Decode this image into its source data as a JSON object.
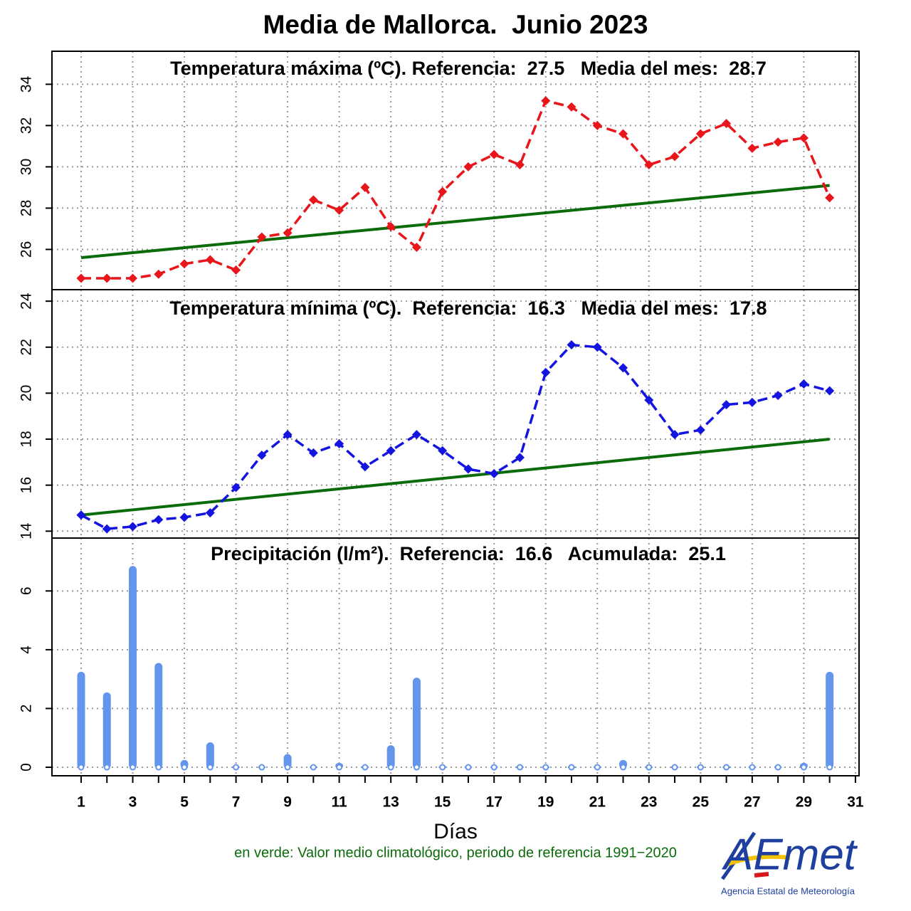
{
  "title": "Media de Mallorca.  Junio 2023",
  "xlabel": "Días",
  "note": "en verde: Valor medio climatológico, periodo de referencia 1991−2020",
  "logo": {
    "name": "AEmet",
    "subtitle": "Agencia Estatal de Meteorología"
  },
  "chart_data": [
    {
      "type": "line",
      "title": "Temperatura máxima (ºC). Referencia:  27.5   Media del mes:  28.7",
      "x": [
        1,
        2,
        3,
        4,
        5,
        6,
        7,
        8,
        9,
        10,
        11,
        12,
        13,
        14,
        15,
        16,
        17,
        18,
        19,
        20,
        21,
        22,
        23,
        24,
        25,
        26,
        27,
        28,
        29,
        30
      ],
      "values": [
        24.6,
        24.6,
        24.6,
        24.8,
        25.3,
        25.5,
        25.0,
        26.6,
        26.8,
        28.4,
        27.9,
        29.0,
        27.1,
        26.1,
        28.8,
        30.0,
        30.6,
        30.1,
        33.2,
        32.9,
        32.0,
        31.6,
        30.1,
        30.5,
        31.6,
        32.1,
        30.9,
        31.2,
        31.4,
        28.5
      ],
      "color": "#e8161a",
      "reference": {
        "x": [
          1,
          30
        ],
        "values": [
          25.6,
          29.1
        ],
        "color": "#0b6b0b"
      },
      "xlim": [
        -0.13,
        31.14
      ],
      "xticks": [
        1,
        3,
        5,
        7,
        9,
        11,
        13,
        15,
        17,
        19,
        21,
        23,
        25,
        27,
        29,
        31
      ],
      "ylim": [
        24.05,
        35.6
      ],
      "yticks": [
        26,
        28,
        30,
        32,
        34
      ],
      "grid": true
    },
    {
      "type": "line",
      "title": "Temperatura mínima (ºC).  Referencia:  16.3   Media del mes:  17.8",
      "x": [
        1,
        2,
        3,
        4,
        5,
        6,
        7,
        8,
        9,
        10,
        11,
        12,
        13,
        14,
        15,
        16,
        17,
        18,
        19,
        20,
        21,
        22,
        23,
        24,
        25,
        26,
        27,
        28,
        29,
        30
      ],
      "values": [
        14.7,
        14.1,
        14.2,
        14.5,
        14.6,
        14.8,
        15.9,
        17.3,
        18.2,
        17.4,
        17.8,
        16.8,
        17.5,
        18.2,
        17.5,
        16.7,
        16.5,
        17.2,
        20.9,
        22.1,
        22.0,
        21.1,
        19.7,
        18.2,
        18.4,
        19.5,
        19.6,
        19.9,
        20.4,
        20.1
      ],
      "color": "#1414e0",
      "reference": {
        "x": [
          1,
          30
        ],
        "values": [
          14.7,
          18.0
        ],
        "color": "#0b6b0b"
      },
      "xlim": [
        -0.13,
        31.14
      ],
      "xticks": [
        1,
        3,
        5,
        7,
        9,
        11,
        13,
        15,
        17,
        19,
        21,
        23,
        25,
        27,
        29,
        31
      ],
      "ylim": [
        13.7,
        24.5
      ],
      "yticks": [
        14,
        16,
        18,
        20,
        22,
        24
      ],
      "grid": true
    },
    {
      "type": "bar",
      "title": "Precipitación (l/m²).  Referencia:  16.6   Acumulada:  25.1",
      "x": [
        1,
        2,
        3,
        4,
        5,
        6,
        7,
        8,
        9,
        10,
        11,
        12,
        13,
        14,
        15,
        16,
        17,
        18,
        19,
        20,
        21,
        22,
        23,
        24,
        25,
        26,
        27,
        28,
        29,
        30
      ],
      "values": [
        3.2,
        2.5,
        6.8,
        3.5,
        0.2,
        0.8,
        0.0,
        0.0,
        0.4,
        0.0,
        0.1,
        0.0,
        0.7,
        3.0,
        0.0,
        0.0,
        0.0,
        0.0,
        0.0,
        0.0,
        0.0,
        0.2,
        0.0,
        0.0,
        0.0,
        0.0,
        0.0,
        0.0,
        0.1,
        3.2
      ],
      "color": "#6495ed",
      "xlim": [
        -0.13,
        31.14
      ],
      "xticks": [
        1,
        3,
        5,
        7,
        9,
        11,
        13,
        15,
        17,
        19,
        21,
        23,
        25,
        27,
        29,
        31
      ],
      "xminorticks": [
        2,
        4,
        6,
        8,
        10,
        12,
        14,
        16,
        18,
        20,
        22,
        24,
        26,
        28,
        30
      ],
      "ylim": [
        -0.29,
        7.8
      ],
      "yticks": [
        0,
        2,
        4,
        6
      ],
      "grid": true
    }
  ]
}
